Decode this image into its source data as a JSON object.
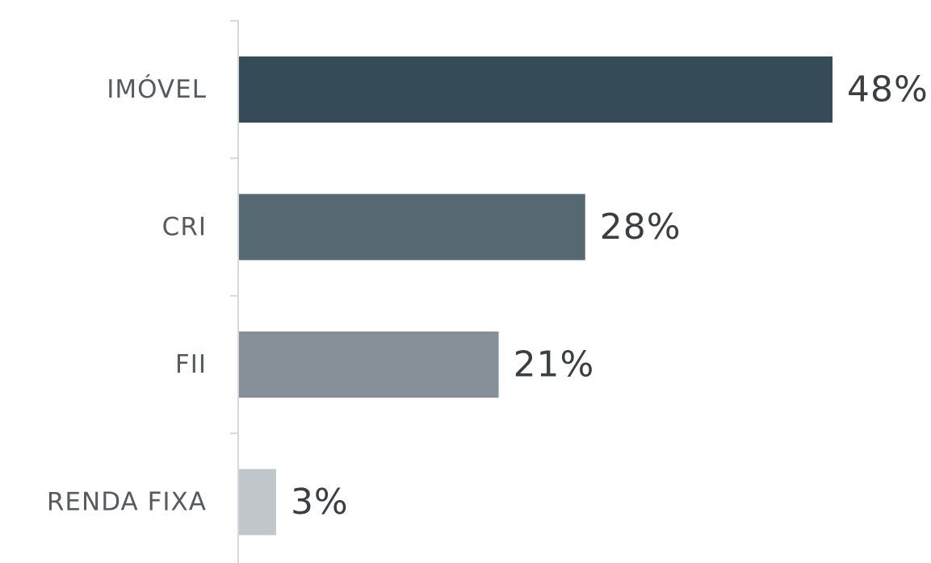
{
  "chart_data": {
    "type": "bar",
    "orientation": "horizontal",
    "categories": [
      "IMÓVEL",
      "CRI",
      "FII",
      "RENDA FIXA"
    ],
    "values": [
      48,
      28,
      21,
      3
    ],
    "value_labels": [
      "48%",
      "28%",
      "21%",
      "3%"
    ],
    "bar_colors": [
      "#364b58",
      "#566973",
      "#848f97",
      "#c1c6ca"
    ],
    "axis_color": "#d6d9dc",
    "grid": false,
    "legend": "none",
    "xlim": [
      0,
      48
    ]
  }
}
